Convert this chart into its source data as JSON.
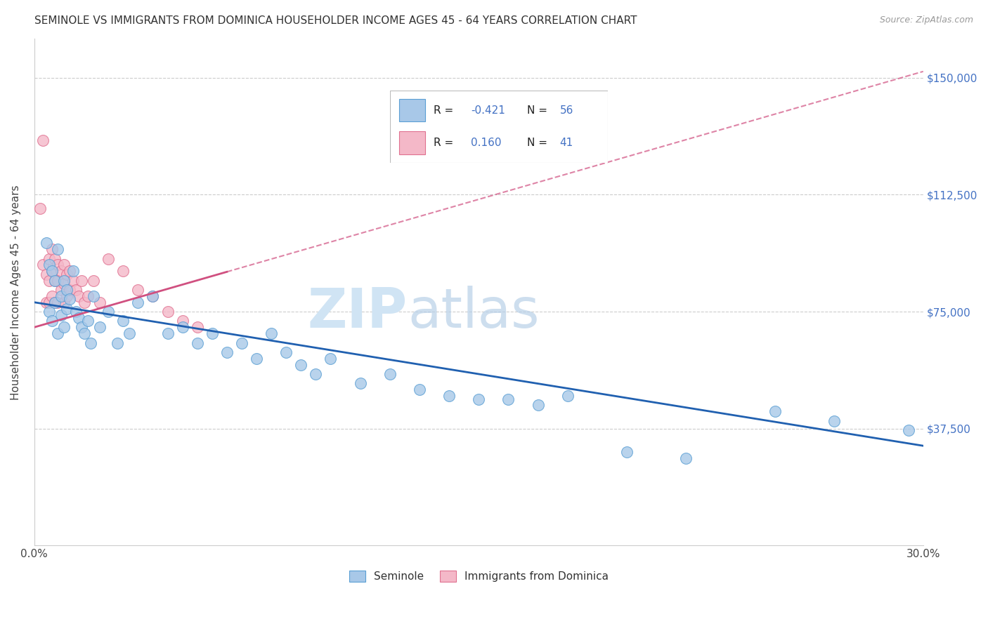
{
  "title": "SEMINOLE VS IMMIGRANTS FROM DOMINICA HOUSEHOLDER INCOME AGES 45 - 64 YEARS CORRELATION CHART",
  "source": "Source: ZipAtlas.com",
  "ylabel": "Householder Income Ages 45 - 64 years",
  "xlim": [
    0.0,
    0.3
  ],
  "ylim": [
    0,
    162500
  ],
  "xticks": [
    0.0,
    0.05,
    0.1,
    0.15,
    0.2,
    0.25,
    0.3
  ],
  "xticklabels": [
    "0.0%",
    "",
    "",
    "",
    "",
    "",
    "30.0%"
  ],
  "ytick_positions": [
    0,
    37500,
    75000,
    112500,
    150000
  ],
  "ytick_labels_right": [
    "",
    "$37,500",
    "$75,000",
    "$112,500",
    "$150,000"
  ],
  "R_blue": -0.421,
  "N_blue": 56,
  "R_pink": 0.16,
  "N_pink": 41,
  "blue_scatter_color": "#a8c8e8",
  "blue_edge_color": "#5a9fd4",
  "pink_scatter_color": "#f4b8c8",
  "pink_edge_color": "#e07090",
  "trend_blue_color": "#2060b0",
  "trend_pink_color": "#d05080",
  "watermark_color": "#d0e4f4",
  "legend_label_blue": "Seminole",
  "legend_label_pink": "Immigrants from Dominica",
  "blue_scatter_x": [
    0.004,
    0.005,
    0.005,
    0.006,
    0.006,
    0.007,
    0.007,
    0.008,
    0.008,
    0.009,
    0.009,
    0.01,
    0.01,
    0.011,
    0.011,
    0.012,
    0.013,
    0.014,
    0.015,
    0.016,
    0.017,
    0.018,
    0.019,
    0.02,
    0.022,
    0.025,
    0.028,
    0.03,
    0.032,
    0.035,
    0.04,
    0.045,
    0.05,
    0.055,
    0.06,
    0.065,
    0.07,
    0.075,
    0.08,
    0.085,
    0.09,
    0.095,
    0.1,
    0.11,
    0.12,
    0.13,
    0.14,
    0.15,
    0.16,
    0.17,
    0.18,
    0.2,
    0.22,
    0.25,
    0.27,
    0.295
  ],
  "blue_scatter_y": [
    97000,
    90000,
    75000,
    88000,
    72000,
    85000,
    78000,
    95000,
    68000,
    80000,
    74000,
    85000,
    70000,
    82000,
    76000,
    79000,
    88000,
    75000,
    73000,
    70000,
    68000,
    72000,
    65000,
    80000,
    70000,
    75000,
    65000,
    72000,
    68000,
    78000,
    80000,
    68000,
    70000,
    65000,
    68000,
    62000,
    65000,
    60000,
    68000,
    62000,
    58000,
    55000,
    60000,
    52000,
    55000,
    50000,
    48000,
    47000,
    47000,
    45000,
    48000,
    30000,
    28000,
    43000,
    40000,
    37000
  ],
  "pink_scatter_x": [
    0.002,
    0.003,
    0.004,
    0.004,
    0.005,
    0.005,
    0.005,
    0.006,
    0.006,
    0.006,
    0.007,
    0.007,
    0.007,
    0.008,
    0.008,
    0.008,
    0.009,
    0.009,
    0.01,
    0.01,
    0.01,
    0.011,
    0.011,
    0.012,
    0.012,
    0.013,
    0.014,
    0.015,
    0.016,
    0.017,
    0.018,
    0.02,
    0.022,
    0.025,
    0.03,
    0.035,
    0.04,
    0.045,
    0.05,
    0.055,
    0.003
  ],
  "pink_scatter_y": [
    108000,
    90000,
    87000,
    78000,
    92000,
    85000,
    78000,
    95000,
    88000,
    80000,
    92000,
    85000,
    78000,
    90000,
    85000,
    78000,
    88000,
    82000,
    90000,
    84000,
    78000,
    87000,
    80000,
    88000,
    82000,
    85000,
    82000,
    80000,
    85000,
    78000,
    80000,
    85000,
    78000,
    92000,
    88000,
    82000,
    80000,
    75000,
    72000,
    70000,
    130000
  ],
  "blue_trend_y_at_0": 78000,
  "blue_trend_y_at_30": 32000,
  "pink_trend_y_at_0": 70000,
  "pink_trend_y_at_30": 152000
}
